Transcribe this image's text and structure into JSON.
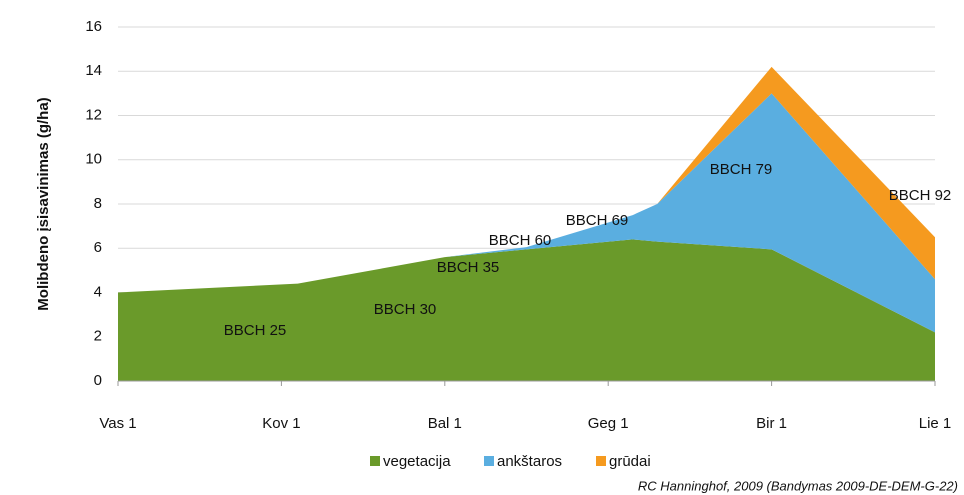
{
  "chart_data": {
    "type": "stacked_area",
    "ylabel": "Molibdeno įsisavinimas (g/ha)",
    "x": [
      0,
      1.1,
      2,
      2.5,
      3.15,
      3.3,
      4,
      5
    ],
    "xlim": [
      0,
      5
    ],
    "xticks": [
      {
        "value": 0,
        "label": "Vas 1"
      },
      {
        "value": 1,
        "label": "Kov 1"
      },
      {
        "value": 2,
        "label": "Bal 1"
      },
      {
        "value": 3,
        "label": "Geg 1"
      },
      {
        "value": 4,
        "label": "Bir 1"
      },
      {
        "value": 5,
        "label": "Lie 1"
      }
    ],
    "ylim": [
      0,
      16
    ],
    "yticks": [
      0,
      2,
      4,
      6,
      8,
      10,
      12,
      14,
      16
    ],
    "grid": true,
    "series": [
      {
        "name": "vegetacija",
        "color": "#6a9a2a",
        "values": [
          4.0,
          4.4,
          5.6,
          5.95,
          6.4,
          6.3,
          5.95,
          2.2
        ]
      },
      {
        "name": "ankštaros",
        "color": "#5aaee0",
        "values": [
          0,
          0,
          0,
          0.1,
          1.1,
          1.7,
          7.05,
          2.4
        ]
      },
      {
        "name": "grūdai",
        "color": "#f59a1f",
        "values": [
          0,
          0,
          0,
          0,
          0,
          0,
          1.2,
          1.9
        ]
      }
    ],
    "annotations": [
      "BBCH 25",
      "BBCH 30",
      "BBCH 35",
      "BBCH 60",
      "BBCH 69",
      "BBCH 79",
      "BBCH 92"
    ],
    "source": "RC Hanninghof, 2009 (Bandymas 2009-DE-DEM-G-22)"
  }
}
